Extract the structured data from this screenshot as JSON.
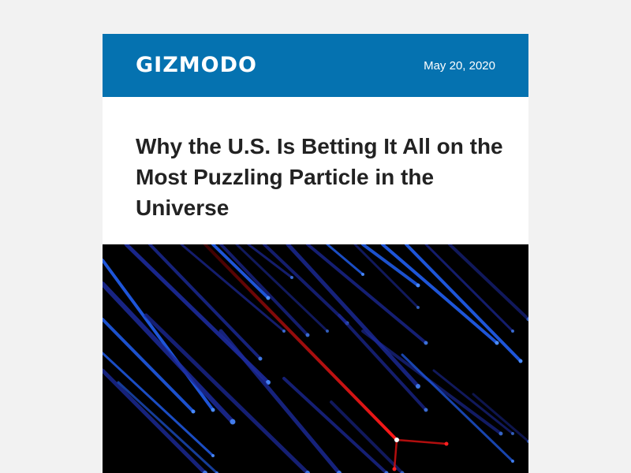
{
  "header": {
    "brand": "GIZMODO",
    "date": "May 20, 2020",
    "background_color": "#0572b0"
  },
  "article": {
    "headline": "Why the U.S. Is Betting It All on the Most Puzzling Particle in the Universe"
  },
  "hero_image": {
    "description_icon": "particle-tracks-illustration",
    "colors": {
      "background": "#000000",
      "track_blue": "#1e55d8",
      "track_dark_blue": "#1c2a9a",
      "track_red": "#d01010"
    }
  }
}
